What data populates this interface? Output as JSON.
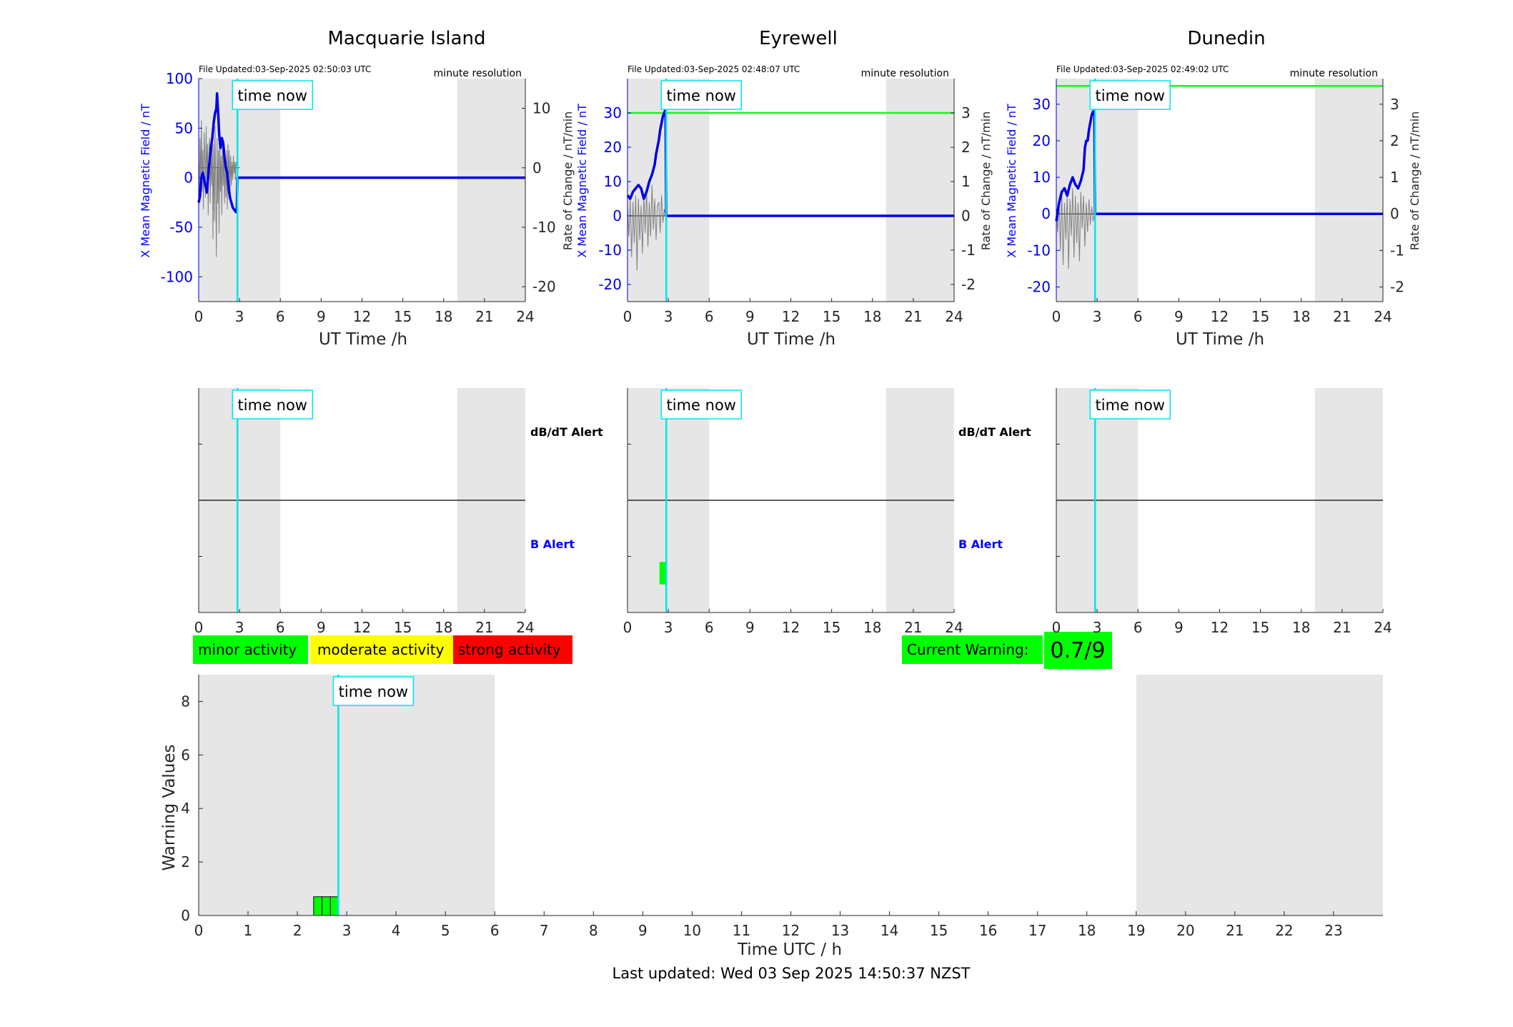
{
  "colors": {
    "background": "#ffffff",
    "night_shade": "#e6e6e6",
    "now_line": "#00e5ee",
    "x_field": "#0000e6",
    "rate": "#808080",
    "threshold": "#22ee22",
    "minor": "#00ff00",
    "moderate": "#ffff00",
    "strong": "#ff0000",
    "axis": "#262626",
    "blue_text": "#0000ff"
  },
  "common": {
    "time_now_label": "time now",
    "now_hour": 2.85,
    "shade_ranges_hours": [
      [
        0,
        6
      ],
      [
        19,
        24
      ]
    ],
    "x_ticks": [
      "0",
      "3",
      "6",
      "9",
      "12",
      "15",
      "18",
      "21",
      "24"
    ],
    "x_tick_values": [
      0,
      3,
      6,
      9,
      12,
      15,
      18,
      21,
      24
    ],
    "x_label": "UT Time /h",
    "y_label_left": "X Mean Magnetic Field / nT",
    "y_label_right": "Rate of Change / nT/min",
    "resolution_label": "minute resolution",
    "dbdt_alert_label": "dB/dT Alert",
    "b_alert_label": "B Alert"
  },
  "chart_data": [
    {
      "type": "line",
      "station": "Macquarie Island",
      "file_updated": "File Updated:03-Sep-2025 02:50:03 UTC",
      "xlim": [
        0,
        24
      ],
      "ylim_left": [
        -125,
        100
      ],
      "yticks_left": [
        -100,
        -50,
        0,
        50,
        100
      ],
      "ytick_labels_left": [
        "-100",
        "-50",
        "0",
        "50",
        "100"
      ],
      "ylim_right": [
        -22.5,
        15
      ],
      "yticks_right": [
        -20,
        -10,
        0,
        10
      ],
      "ytick_labels_right": [
        "-20",
        "-10",
        "0",
        "10"
      ],
      "threshold": null,
      "x_field": {
        "x": [
          0,
          0.1,
          0.2,
          0.3,
          0.45,
          0.6,
          0.75,
          0.9,
          1.0,
          1.1,
          1.2,
          1.3,
          1.35,
          1.45,
          1.5,
          1.6,
          1.7,
          1.8,
          1.9,
          2.0,
          2.1,
          2.2,
          2.3,
          2.4,
          2.5,
          2.6,
          2.7,
          2.8,
          2.85,
          3.0,
          24.0
        ],
        "y": [
          -25,
          -18,
          0,
          5,
          -5,
          -15,
          10,
          30,
          40,
          55,
          65,
          70,
          85,
          60,
          45,
          30,
          40,
          35,
          20,
          10,
          5,
          -10,
          -20,
          -25,
          -30,
          -32,
          -34,
          -35,
          0,
          0,
          0
        ]
      },
      "rate": {
        "x": [
          0,
          0.05,
          0.1,
          0.15,
          0.2,
          0.25,
          0.3,
          0.35,
          0.4,
          0.45,
          0.5,
          0.55,
          0.6,
          0.65,
          0.7,
          0.75,
          0.8,
          0.85,
          0.9,
          0.95,
          1.0,
          1.05,
          1.1,
          1.15,
          1.2,
          1.25,
          1.3,
          1.35,
          1.4,
          1.45,
          1.5,
          1.55,
          1.6,
          1.65,
          1.7,
          1.75,
          1.8,
          1.85,
          1.9,
          1.95,
          2.0,
          2.05,
          2.1,
          2.15,
          2.2,
          2.25,
          2.3,
          2.35,
          2.4,
          2.45,
          2.5,
          2.55,
          2.6,
          2.65,
          2.7,
          2.75,
          2.8,
          2.85
        ],
        "y": [
          2,
          -6,
          5,
          -3,
          8,
          -4,
          3,
          -7,
          6,
          2,
          -5,
          7,
          -2,
          4,
          -8,
          3,
          5,
          -6,
          2,
          -3,
          6,
          -12,
          4,
          -9,
          7,
          -3,
          -15,
          5,
          -6,
          3,
          -11,
          6,
          -4,
          2,
          -8,
          5,
          -3,
          4,
          -6,
          2,
          -5,
          3,
          -7,
          4,
          -2,
          3,
          -4,
          2,
          -3,
          1,
          -2,
          2,
          -1,
          1,
          -2,
          1,
          0,
          0
        ]
      },
      "alerts": [],
      "dbdt_label_side": "right"
    },
    {
      "type": "line",
      "station": "Eyrewell",
      "file_updated": "File Updated:03-Sep-2025 02:48:07 UTC",
      "xlim": [
        0,
        24
      ],
      "ylim_left": [
        -25,
        40
      ],
      "yticks_left": [
        -20,
        -10,
        0,
        10,
        20,
        30
      ],
      "ytick_labels_left": [
        "-20",
        "-10",
        "0",
        "10",
        "20",
        "30"
      ],
      "ylim_right": [
        -2.5,
        4
      ],
      "yticks_right": [
        -2,
        -1,
        0,
        1,
        2,
        3
      ],
      "ytick_labels_right": [
        "-2",
        "-1",
        "0",
        "1",
        "2",
        "3"
      ],
      "threshold": 30,
      "x_field": {
        "x": [
          0,
          0.2,
          0.4,
          0.6,
          0.8,
          1.0,
          1.2,
          1.4,
          1.6,
          1.8,
          2.0,
          2.1,
          2.2,
          2.3,
          2.4,
          2.5,
          2.6,
          2.7,
          2.8,
          2.85,
          3.0,
          24.0
        ],
        "y": [
          6,
          5,
          7,
          8,
          9,
          8,
          5,
          7,
          10,
          12,
          15,
          18,
          20,
          22,
          25,
          27,
          29,
          30,
          31,
          0,
          0,
          0
        ]
      },
      "rate": {
        "x": [
          0,
          0.1,
          0.2,
          0.3,
          0.4,
          0.5,
          0.6,
          0.7,
          0.8,
          0.9,
          1.0,
          1.1,
          1.2,
          1.3,
          1.4,
          1.5,
          1.6,
          1.7,
          1.8,
          1.9,
          2.0,
          2.1,
          2.2,
          2.3,
          2.4,
          2.5,
          2.6,
          2.7,
          2.8
        ],
        "y": [
          0.3,
          -0.6,
          0.5,
          -1.2,
          0.4,
          -0.8,
          0.6,
          -1.6,
          0.5,
          -0.7,
          0.3,
          -1.1,
          0.6,
          -0.5,
          0.8,
          -0.9,
          0.4,
          -0.6,
          0.9,
          -0.4,
          0.5,
          -0.7,
          0.3,
          0.4,
          -0.5,
          0.6,
          -0.2,
          0.2,
          0
        ]
      },
      "alerts": [
        {
          "x0": 2.35,
          "x1": 2.85,
          "fraction": 0.2
        }
      ],
      "dbdt_label_side": "right"
    },
    {
      "type": "line",
      "station": "Dunedin",
      "file_updated": "File Updated:03-Sep-2025 02:49:02 UTC",
      "xlim": [
        0,
        24
      ],
      "ylim_left": [
        -24,
        37
      ],
      "yticks_left": [
        -20,
        -10,
        0,
        10,
        20,
        30
      ],
      "ytick_labels_left": [
        "-20",
        "-10",
        "0",
        "10",
        "20",
        "30"
      ],
      "ylim_right": [
        -2.4,
        3.7
      ],
      "yticks_right": [
        -2,
        -1,
        0,
        1,
        2,
        3
      ],
      "ytick_labels_right": [
        "-2",
        "-1",
        "0",
        "1",
        "2",
        "3"
      ],
      "threshold": 35,
      "x_field": {
        "x": [
          0,
          0.2,
          0.4,
          0.6,
          0.8,
          1.0,
          1.2,
          1.4,
          1.6,
          1.8,
          2.0,
          2.1,
          2.2,
          2.3,
          2.4,
          2.5,
          2.6,
          2.7,
          2.8,
          2.85,
          3.0,
          24.0
        ],
        "y": [
          -2,
          3,
          6,
          7,
          5,
          8,
          10,
          8,
          7,
          9,
          12,
          18,
          20,
          20,
          23,
          25,
          27,
          28,
          28,
          0,
          0,
          0
        ]
      },
      "rate": {
        "x": [
          0,
          0.1,
          0.2,
          0.3,
          0.4,
          0.5,
          0.6,
          0.7,
          0.8,
          0.9,
          1.0,
          1.1,
          1.2,
          1.3,
          1.4,
          1.5,
          1.6,
          1.7,
          1.8,
          1.9,
          2.0,
          2.1,
          2.2,
          2.3,
          2.4,
          2.5,
          2.6,
          2.7,
          2.8
        ],
        "y": [
          0.2,
          -0.5,
          0.4,
          -1.0,
          0.6,
          -1.4,
          0.3,
          -0.7,
          0.5,
          -1.5,
          0.4,
          -0.6,
          0.7,
          -1.2,
          0.5,
          -0.8,
          0.3,
          -1.3,
          0.6,
          -0.4,
          0.5,
          -0.9,
          0.3,
          -0.5,
          0.4,
          -0.3,
          0.2,
          -0.2,
          0
        ]
      },
      "alerts": [],
      "dbdt_label_side": "none"
    },
    {
      "type": "bar",
      "title": "",
      "xlabel": "Time UTC / h",
      "ylabel": "Warning Values",
      "xlim": [
        0,
        24
      ],
      "x_ticks": [
        "0",
        "1",
        "2",
        "3",
        "4",
        "5",
        "6",
        "7",
        "8",
        "9",
        "10",
        "11",
        "12",
        "13",
        "14",
        "15",
        "16",
        "17",
        "18",
        "19",
        "20",
        "21",
        "22",
        "23"
      ],
      "ylim": [
        0,
        9
      ],
      "yticks": [
        0,
        2,
        4,
        6,
        8
      ],
      "ytick_labels": [
        "0",
        "2",
        "4",
        "6",
        "8"
      ],
      "bars": [
        {
          "x0": 2.33,
          "x1": 2.5,
          "value": 0.7
        },
        {
          "x0": 2.5,
          "x1": 2.67,
          "value": 0.7
        },
        {
          "x0": 2.67,
          "x1": 2.83,
          "value": 0.7
        }
      ],
      "now_hour": 2.83
    }
  ],
  "legend": {
    "minor": "minor activity",
    "moderate": "moderate activity",
    "strong": "strong activity"
  },
  "warning": {
    "label": "Current Warning:",
    "value": "0.7/9"
  },
  "footer": {
    "last_updated": "Last updated: Wed 03 Sep 2025 14:50:37 NZST"
  }
}
